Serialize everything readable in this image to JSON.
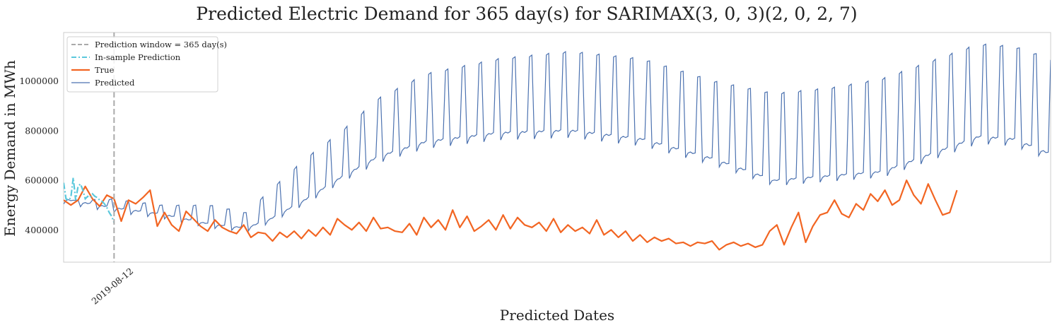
{
  "chart_data": {
    "type": "line",
    "title": "Predicted Electric Demand for 365 day(s) for SARIMAX(3, 0, 3)(2, 0, 2, 7)",
    "xlabel": "Predicted Dates",
    "ylabel": "Energy Demand in MWh",
    "x_tick_labels": [
      "2019-08-12"
    ],
    "x_tick_positions_day_index": [
      0
    ],
    "x_range_day_index": [
      -21,
      390
    ],
    "ylim": [
      270000,
      1195000
    ],
    "y_ticks": [
      400000,
      600000,
      800000,
      1000000
    ],
    "y_tick_labels": [
      "400000",
      "600000",
      "800000",
      "1000000"
    ],
    "grid": false,
    "legend_position": "upper left",
    "legend": [
      {
        "label": "Prediction window = 365 day(s)",
        "color": "#aaaaaa",
        "style": "dashed"
      },
      {
        "label": "In-sample Prediction",
        "color": "#5bc8dc",
        "style": "dashdot"
      },
      {
        "label": "True",
        "color": "#f26522",
        "style": "solid"
      },
      {
        "label": "Predicted",
        "color": "#4c72b0",
        "style": "solid"
      }
    ],
    "prediction_window_start_day_index": 0,
    "series": [
      {
        "name": "In-sample Prediction",
        "x": [
          -21,
          -20,
          -19,
          -18,
          -17,
          -16,
          -15,
          -14,
          -13,
          -12,
          -11,
          -10,
          -9,
          -8,
          -7,
          -6,
          -5,
          -4,
          -3,
          -2,
          -1,
          0
        ],
        "values": [
          590000,
          525000,
          520000,
          530000,
          610000,
          520000,
          575000,
          585000,
          560000,
          525000,
          535000,
          530000,
          545000,
          535000,
          530000,
          520000,
          515000,
          505000,
          490000,
          470000,
          455000,
          430000
        ]
      },
      {
        "name": "True",
        "sampled_every_days": 3,
        "x_start": -21,
        "values": [
          520000,
          500000,
          520000,
          575000,
          525000,
          495000,
          540000,
          525000,
          435000,
          520000,
          505000,
          530000,
          560000,
          415000,
          470000,
          420000,
          395000,
          475000,
          445000,
          415000,
          395000,
          440000,
          410000,
          395000,
          385000,
          420000,
          370000,
          390000,
          385000,
          355000,
          390000,
          370000,
          395000,
          365000,
          400000,
          375000,
          410000,
          380000,
          445000,
          420000,
          400000,
          430000,
          395000,
          450000,
          405000,
          410000,
          395000,
          390000,
          425000,
          380000,
          450000,
          410000,
          440000,
          400000,
          480000,
          410000,
          455000,
          395000,
          415000,
          440000,
          400000,
          460000,
          405000,
          450000,
          420000,
          410000,
          430000,
          395000,
          445000,
          390000,
          420000,
          395000,
          410000,
          385000,
          440000,
          380000,
          400000,
          370000,
          395000,
          355000,
          380000,
          350000,
          370000,
          355000,
          365000,
          345000,
          350000,
          335000,
          350000,
          345000,
          355000,
          320000,
          340000,
          350000,
          335000,
          345000,
          330000,
          340000,
          395000,
          420000,
          340000,
          410000,
          470000,
          350000,
          415000,
          460000,
          470000,
          520000,
          465000,
          450000,
          505000,
          480000,
          545000,
          515000,
          560000,
          500000,
          520000,
          600000,
          540000,
          505000,
          585000,
          520000,
          460000,
          470000,
          560000
        ]
      },
      {
        "name": "Predicted",
        "x_start": -21,
        "sampled_every_days": 1,
        "weekly_pattern": "six lower weekdays followed by one spike day",
        "keypoints": [
          {
            "x": -21,
            "base": 520000,
            "spike": 520000
          },
          {
            "x": 0,
            "base": 485000,
            "spike": 525000
          },
          {
            "x": 20,
            "base": 460000,
            "spike": 500000
          },
          {
            "x": 40,
            "base": 420000,
            "spike": 500000
          },
          {
            "x": 55,
            "base": 405000,
            "spike": 470000
          },
          {
            "x": 65,
            "base": 440000,
            "spike": 560000
          },
          {
            "x": 80,
            "base": 520000,
            "spike": 690000
          },
          {
            "x": 95,
            "base": 610000,
            "spike": 800000
          },
          {
            "x": 110,
            "base": 690000,
            "spike": 930000
          },
          {
            "x": 130,
            "base": 750000,
            "spike": 1030000
          },
          {
            "x": 160,
            "base": 785000,
            "spike": 1090000
          },
          {
            "x": 190,
            "base": 795000,
            "spike": 1120000
          },
          {
            "x": 220,
            "base": 760000,
            "spike": 1090000
          },
          {
            "x": 250,
            "base": 680000,
            "spike": 1000000
          },
          {
            "x": 275,
            "base": 595000,
            "spike": 950000
          },
          {
            "x": 300,
            "base": 615000,
            "spike": 975000
          },
          {
            "x": 320,
            "base": 630000,
            "spike": 1010000
          },
          {
            "x": 340,
            "base": 700000,
            "spike": 1080000
          },
          {
            "x": 360,
            "base": 770000,
            "spike": 1150000
          },
          {
            "x": 375,
            "base": 760000,
            "spike": 1140000
          },
          {
            "x": 390,
            "base": 700000,
            "spike": 1090000
          }
        ]
      }
    ]
  }
}
